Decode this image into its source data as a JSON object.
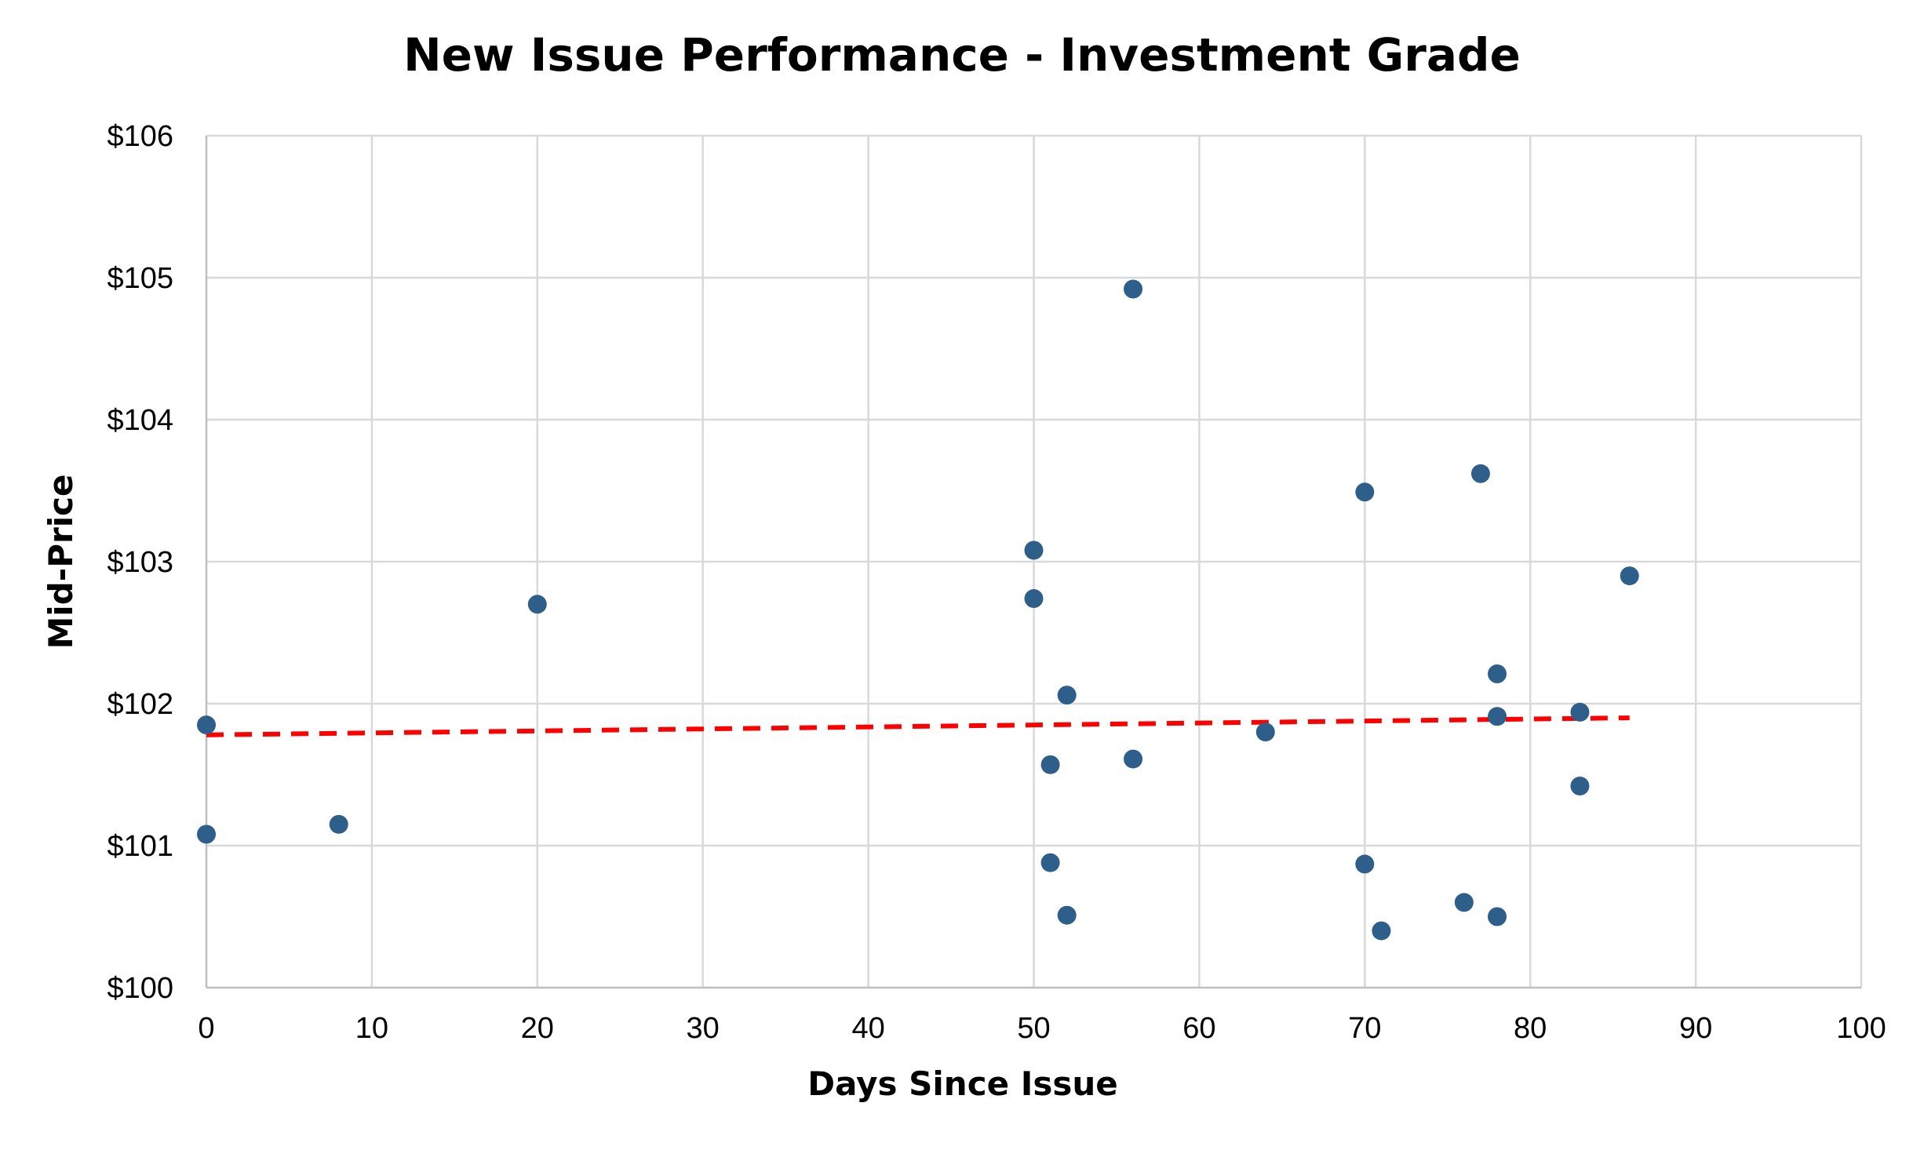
{
  "chart_data": {
    "type": "scatter",
    "title": "New Issue Performance - Investment Grade",
    "xlabel": "Days Since Issue",
    "ylabel": "Mid-Price",
    "xlim": [
      0,
      100
    ],
    "ylim": [
      100,
      106
    ],
    "x_ticks": [
      0,
      10,
      20,
      30,
      40,
      50,
      60,
      70,
      80,
      90,
      100
    ],
    "x_tick_labels": [
      "0",
      "10",
      "20",
      "30",
      "40",
      "50",
      "60",
      "70",
      "80",
      "90",
      "100"
    ],
    "y_ticks": [
      100,
      101,
      102,
      103,
      104,
      105,
      106
    ],
    "y_tick_labels": [
      "$100",
      "$101",
      "$102",
      "$103",
      "$104",
      "$105",
      "$106"
    ],
    "grid": true,
    "legend": "none",
    "series": [
      {
        "marker_color": "#2e5f8a",
        "points": [
          {
            "x": 0,
            "y": 101.85
          },
          {
            "x": 0,
            "y": 101.08
          },
          {
            "x": 8,
            "y": 101.15
          },
          {
            "x": 20,
            "y": 102.7
          },
          {
            "x": 50,
            "y": 103.08
          },
          {
            "x": 50,
            "y": 102.74
          },
          {
            "x": 51,
            "y": 101.57
          },
          {
            "x": 51,
            "y": 100.88
          },
          {
            "x": 52,
            "y": 102.06
          },
          {
            "x": 52,
            "y": 100.51
          },
          {
            "x": 56,
            "y": 104.92
          },
          {
            "x": 56,
            "y": 101.61
          },
          {
            "x": 64,
            "y": 101.8
          },
          {
            "x": 70,
            "y": 103.49
          },
          {
            "x": 70,
            "y": 100.87
          },
          {
            "x": 71,
            "y": 100.4
          },
          {
            "x": 76,
            "y": 100.6
          },
          {
            "x": 77,
            "y": 103.62
          },
          {
            "x": 78,
            "y": 102.21
          },
          {
            "x": 78,
            "y": 101.91
          },
          {
            "x": 78,
            "y": 100.5
          },
          {
            "x": 83,
            "y": 101.94
          },
          {
            "x": 83,
            "y": 101.42
          },
          {
            "x": 86,
            "y": 102.9
          }
        ]
      }
    ],
    "trendline": {
      "style": "dashed",
      "color": "#ff0000",
      "x_start": 0,
      "y_start": 101.78,
      "x_end": 86,
      "y_end": 101.9
    }
  }
}
